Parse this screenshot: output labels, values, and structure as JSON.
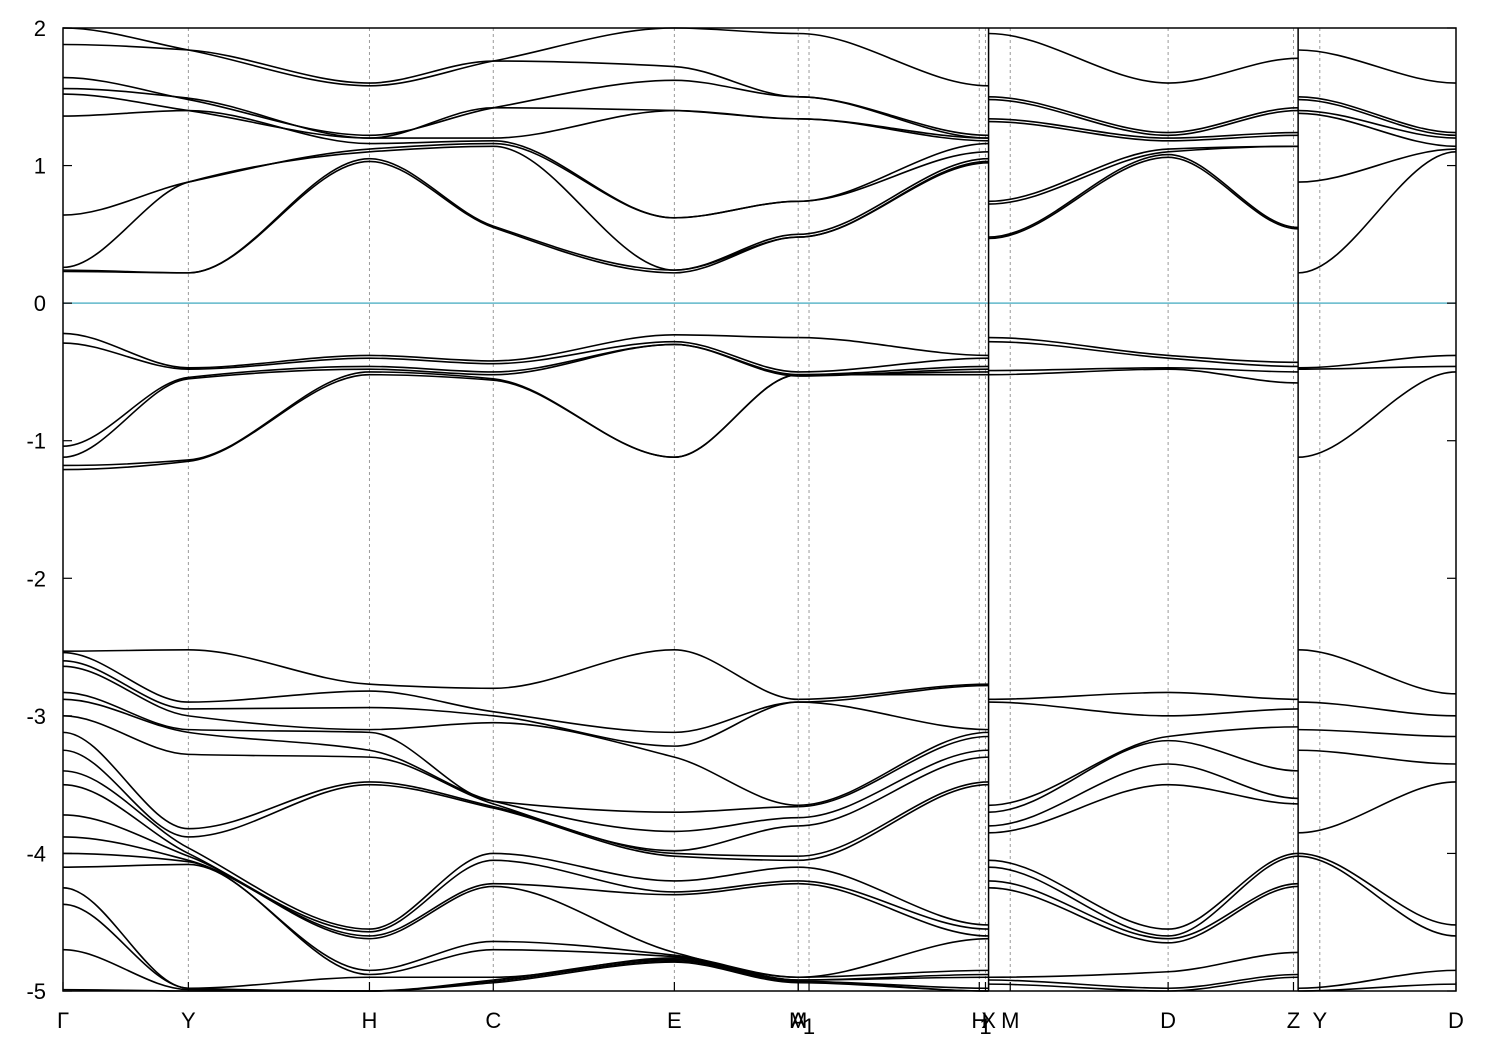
{
  "chart_data": {
    "type": "line",
    "title": "",
    "xlabel": "",
    "ylabel": "",
    "ylim": [
      -5,
      2
    ],
    "yticks": [
      2,
      1,
      0,
      -1,
      -2,
      -3,
      -4,
      -5
    ],
    "xlim": [
      0,
      9.0
    ],
    "grid": {
      "x": true,
      "y": false
    },
    "fermi_level": 0,
    "fermi_color": "#5fb7c9",
    "line_color": "#000000",
    "kpoints": [
      {
        "label": "Γ",
        "x": 0.0
      },
      {
        "label": "Y",
        "x": 0.81
      },
      {
        "label": "H",
        "x": 1.98
      },
      {
        "label": "C",
        "x": 2.78
      },
      {
        "label": "E",
        "x": 3.95
      },
      {
        "label": "M",
        "x": 4.75
      },
      {
        "label": "A",
        "x": 4.75
      },
      {
        "label": "1",
        "x": 4.82
      },
      {
        "label": "H",
        "x": 5.92
      },
      {
        "label": "1",
        "x": 5.96
      },
      {
        "label": "X",
        "x": 5.98
      },
      {
        "label": "M",
        "x": 6.12
      },
      {
        "label": "D",
        "x": 7.14
      },
      {
        "label": "Z",
        "x": 7.95
      },
      {
        "label": "Y",
        "x": 8.12
      },
      {
        "label": "D",
        "x": 9.0
      }
    ],
    "segment_breaks": [
      5.98,
      7.98
    ],
    "segments": [
      {
        "name": "Γ-Y-H-C-E-M",
        "x": [
          0.0,
          0.81,
          1.98,
          2.78,
          3.95,
          4.75
        ],
        "bands": [
          [
            2.0,
            1.84,
            1.58,
            1.76,
            2.0,
            1.96
          ],
          [
            1.88,
            1.84,
            1.6,
            1.76,
            1.72,
            1.5
          ],
          [
            1.64,
            1.48,
            1.22,
            1.42,
            1.62,
            1.5
          ],
          [
            1.56,
            1.49,
            1.2,
            1.42,
            1.4,
            1.34
          ],
          [
            1.52,
            1.4,
            1.2,
            1.2,
            1.4,
            1.34
          ],
          [
            1.36,
            1.4,
            1.16,
            1.18,
            0.62,
            0.74
          ],
          [
            0.64,
            0.88,
            1.12,
            1.16,
            0.62,
            0.74
          ],
          [
            0.26,
            0.88,
            1.1,
            1.14,
            0.24,
            0.5
          ],
          [
            0.24,
            0.22,
            1.05,
            0.56,
            0.24,
            0.48
          ],
          [
            0.23,
            0.22,
            1.03,
            0.55,
            0.22,
            0.48
          ],
          [
            -0.22,
            -0.47,
            -0.38,
            -0.42,
            -0.23,
            -0.25
          ],
          [
            -0.29,
            -0.48,
            -0.4,
            -0.44,
            -0.28,
            -0.5
          ],
          [
            -1.04,
            -0.54,
            -0.46,
            -0.5,
            -0.3,
            -0.52
          ],
          [
            -1.12,
            -0.55,
            -0.48,
            -0.52,
            -0.3,
            -0.53
          ],
          [
            -1.18,
            -1.14,
            -0.5,
            -0.55,
            -1.12,
            -0.52
          ],
          [
            -1.21,
            -1.15,
            -0.52,
            -0.56,
            -1.12,
            -0.52
          ],
          [
            -2.53,
            -2.52,
            -2.77,
            -2.8,
            -2.52,
            -2.88
          ],
          [
            -2.54,
            -2.9,
            -2.82,
            -2.97,
            -3.12,
            -2.9
          ],
          [
            -2.6,
            -2.95,
            -2.94,
            -3.0,
            -3.22,
            -2.9
          ],
          [
            -2.64,
            -3.0,
            -3.1,
            -3.05,
            -3.3,
            -3.65
          ],
          [
            -2.83,
            -3.1,
            -3.12,
            -3.62,
            -3.7,
            -3.66
          ],
          [
            -2.88,
            -3.12,
            -3.25,
            -3.62,
            -3.84,
            -3.74
          ],
          [
            -3.0,
            -3.28,
            -3.3,
            -3.64,
            -3.98,
            -3.8
          ],
          [
            -3.12,
            -3.82,
            -3.48,
            -3.66,
            -4.0,
            -4.02
          ],
          [
            -3.25,
            -3.88,
            -3.5,
            -3.67,
            -4.02,
            -4.05
          ],
          [
            -3.4,
            -3.96,
            -4.55,
            -4.0,
            -4.2,
            -4.1
          ],
          [
            -3.5,
            -4.0,
            -4.57,
            -4.05,
            -4.28,
            -4.2
          ],
          [
            -3.72,
            -4.02,
            -4.6,
            -4.22,
            -4.3,
            -4.22
          ],
          [
            -3.88,
            -4.05,
            -4.62,
            -4.24,
            -4.72,
            -4.9
          ],
          [
            -4.0,
            -4.06,
            -4.85,
            -4.64,
            -4.74,
            -4.9
          ],
          [
            -4.1,
            -4.08,
            -4.88,
            -4.7,
            -4.75,
            -4.92
          ],
          [
            -4.25,
            -4.98,
            -4.9,
            -4.9,
            -4.76,
            -4.92
          ],
          [
            -4.37,
            -4.98,
            -5.0,
            -4.92,
            -4.77,
            -4.93
          ],
          [
            -4.7,
            -4.99,
            -5.0,
            -4.93,
            -4.78,
            -4.93
          ],
          [
            -4.99,
            -5.0,
            -5.0,
            -4.94,
            -4.79,
            -4.94
          ]
        ]
      },
      {
        "name": "M-H1",
        "x": [
          4.75,
          5.98
        ],
        "bands": [
          [
            1.96,
            1.58
          ],
          [
            1.5,
            1.22
          ],
          [
            1.5,
            1.2
          ],
          [
            1.34,
            1.2
          ],
          [
            1.34,
            1.18
          ],
          [
            0.74,
            1.16
          ],
          [
            0.74,
            1.1
          ],
          [
            0.5,
            1.05
          ],
          [
            0.48,
            1.03
          ],
          [
            0.48,
            1.02
          ],
          [
            -0.25,
            -0.38
          ],
          [
            -0.5,
            -0.4
          ],
          [
            -0.52,
            -0.46
          ],
          [
            -0.53,
            -0.48
          ],
          [
            -0.52,
            -0.5
          ],
          [
            -0.52,
            -0.52
          ],
          [
            -2.88,
            -2.77
          ],
          [
            -2.9,
            -2.78
          ],
          [
            -2.9,
            -3.1
          ],
          [
            -3.65,
            -3.12
          ],
          [
            -3.66,
            -3.15
          ],
          [
            -3.74,
            -3.25
          ],
          [
            -3.8,
            -3.3
          ],
          [
            -4.02,
            -3.48
          ],
          [
            -4.05,
            -3.5
          ],
          [
            -4.1,
            -4.52
          ],
          [
            -4.2,
            -4.55
          ],
          [
            -4.22,
            -4.6
          ],
          [
            -4.9,
            -4.62
          ],
          [
            -4.9,
            -4.85
          ],
          [
            -4.92,
            -4.88
          ],
          [
            -4.92,
            -4.9
          ],
          [
            -4.93,
            -4.98
          ],
          [
            -4.93,
            -5.0
          ],
          [
            -4.94,
            -5.0
          ]
        ]
      },
      {
        "name": "X-D-Z",
        "x": [
          5.98,
          7.14,
          7.98
        ],
        "bands": [
          [
            1.96,
            1.6,
            1.78
          ],
          [
            1.5,
            1.24,
            1.42
          ],
          [
            1.48,
            1.22,
            1.4
          ],
          [
            1.34,
            1.2,
            1.24
          ],
          [
            1.32,
            1.18,
            1.22
          ],
          [
            0.74,
            1.12,
            1.14
          ],
          [
            0.72,
            1.1,
            1.14
          ],
          [
            0.48,
            1.08,
            0.55
          ],
          [
            0.47,
            1.06,
            0.54
          ],
          [
            -0.25,
            -0.38,
            -0.43
          ],
          [
            -0.28,
            -0.4,
            -0.46
          ],
          [
            -0.49,
            -0.47,
            -0.5
          ],
          [
            -0.52,
            -0.48,
            -0.58
          ],
          [
            -2.88,
            -2.83,
            -2.88
          ],
          [
            -2.9,
            -3.0,
            -2.95
          ],
          [
            -3.65,
            -3.15,
            -3.08
          ],
          [
            -3.7,
            -3.18,
            -3.4
          ],
          [
            -3.8,
            -3.35,
            -3.6
          ],
          [
            -3.85,
            -3.5,
            -3.64
          ],
          [
            -4.05,
            -4.55,
            -4.0
          ],
          [
            -4.1,
            -4.6,
            -4.02
          ],
          [
            -4.2,
            -4.62,
            -4.22
          ],
          [
            -4.25,
            -4.65,
            -4.24
          ],
          [
            -4.9,
            -4.86,
            -4.72
          ],
          [
            -4.92,
            -4.98,
            -4.88
          ],
          [
            -4.95,
            -5.0,
            -4.9
          ]
        ]
      },
      {
        "name": "Y-D",
        "x": [
          7.98,
          9.0
        ],
        "bands": [
          [
            1.84,
            1.6
          ],
          [
            1.5,
            1.24
          ],
          [
            1.48,
            1.22
          ],
          [
            1.4,
            1.2
          ],
          [
            1.38,
            1.14
          ],
          [
            0.88,
            1.12
          ],
          [
            0.22,
            1.1
          ],
          [
            -0.47,
            -0.38
          ],
          [
            -0.48,
            -0.46
          ],
          [
            -1.12,
            -0.5
          ],
          [
            -2.52,
            -2.84
          ],
          [
            -2.9,
            -3.0
          ],
          [
            -3.1,
            -3.15
          ],
          [
            -3.25,
            -3.35
          ],
          [
            -3.85,
            -3.48
          ],
          [
            -4.0,
            -4.52
          ],
          [
            -4.02,
            -4.6
          ],
          [
            -4.98,
            -4.85
          ],
          [
            -5.0,
            -4.95
          ]
        ]
      }
    ]
  }
}
